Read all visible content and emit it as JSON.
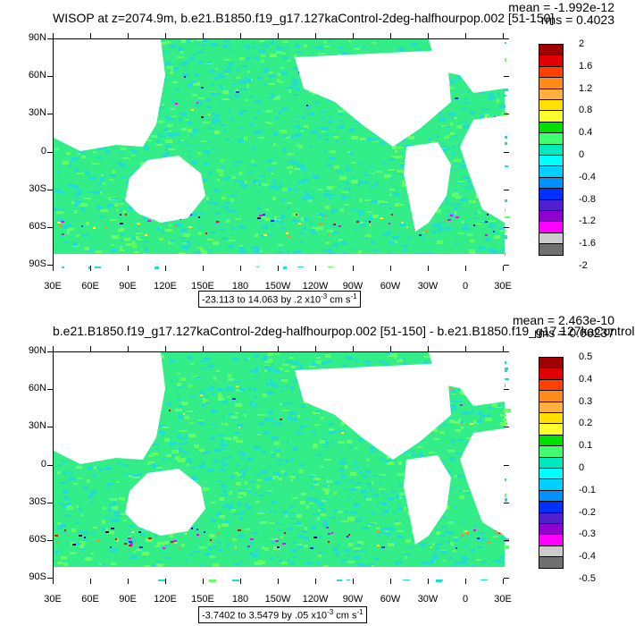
{
  "panels": [
    {
      "title": "WISOP at z=2074.9m, b.e21.B1850.f19_g17.127kaControl-2deg-halfhourpop.002 [51-150]",
      "mean": "mean = -1.992e-12",
      "rms": "rms = 0.4023",
      "range_prefix": "-23.113 to 14.063 by .2 x10",
      "range_exp": "-3",
      "range_units": " cm s",
      "range_units_exp": "-1",
      "colorbar_labels": [
        "2",
        "1.6",
        "1.2",
        "0.8",
        "0.4",
        "0",
        "-0.4",
        "-0.8",
        "-1.2",
        "-1.6",
        "-2"
      ],
      "speckle_seed": 7
    },
    {
      "title": "b.e21.B1850.f19_g17.127kaControl-2deg-halfhourpop.002 [51-150] - b.e21.B1850.f19_g17.127kaControl",
      "mean": "mean = 2.463e-10",
      "rms": "rms = 0.06237",
      "range_prefix": "-3.7402 to 3.5479 by .05 x10",
      "range_exp": "-3",
      "range_units": " cm s",
      "range_units_exp": "-1",
      "colorbar_labels": [
        "0.5",
        "0.4",
        "0.3",
        "0.2",
        "0.1",
        "0",
        "-0.1",
        "-0.2",
        "-0.3",
        "-0.4",
        "-0.5"
      ],
      "speckle_seed": 3
    }
  ],
  "y_axis_labels": [
    "90N",
    "60N",
    "30N",
    "0",
    "30S",
    "60S",
    "90S"
  ],
  "x_axis_labels": [
    "30E",
    "60E",
    "90E",
    "120E",
    "150E",
    "180",
    "150W",
    "120W",
    "90W",
    "60W",
    "30W",
    "0",
    "30E"
  ],
  "colors": {
    "ocean_main": "#33ee88",
    "ocean_alt": "#22ddcc",
    "land": "#ffffff",
    "colorbar": [
      "#a00000",
      "#e00000",
      "#ff4000",
      "#ff8c1a",
      "#ffb040",
      "#ffe000",
      "#ffff30",
      "#00e000",
      "#40ff70",
      "#00e8c0",
      "#00ffff",
      "#00d0ff",
      "#0090ff",
      "#0030ff",
      "#5020d0",
      "#9000d0",
      "#ff00ff",
      "#cccccc",
      "#707070"
    ]
  }
}
